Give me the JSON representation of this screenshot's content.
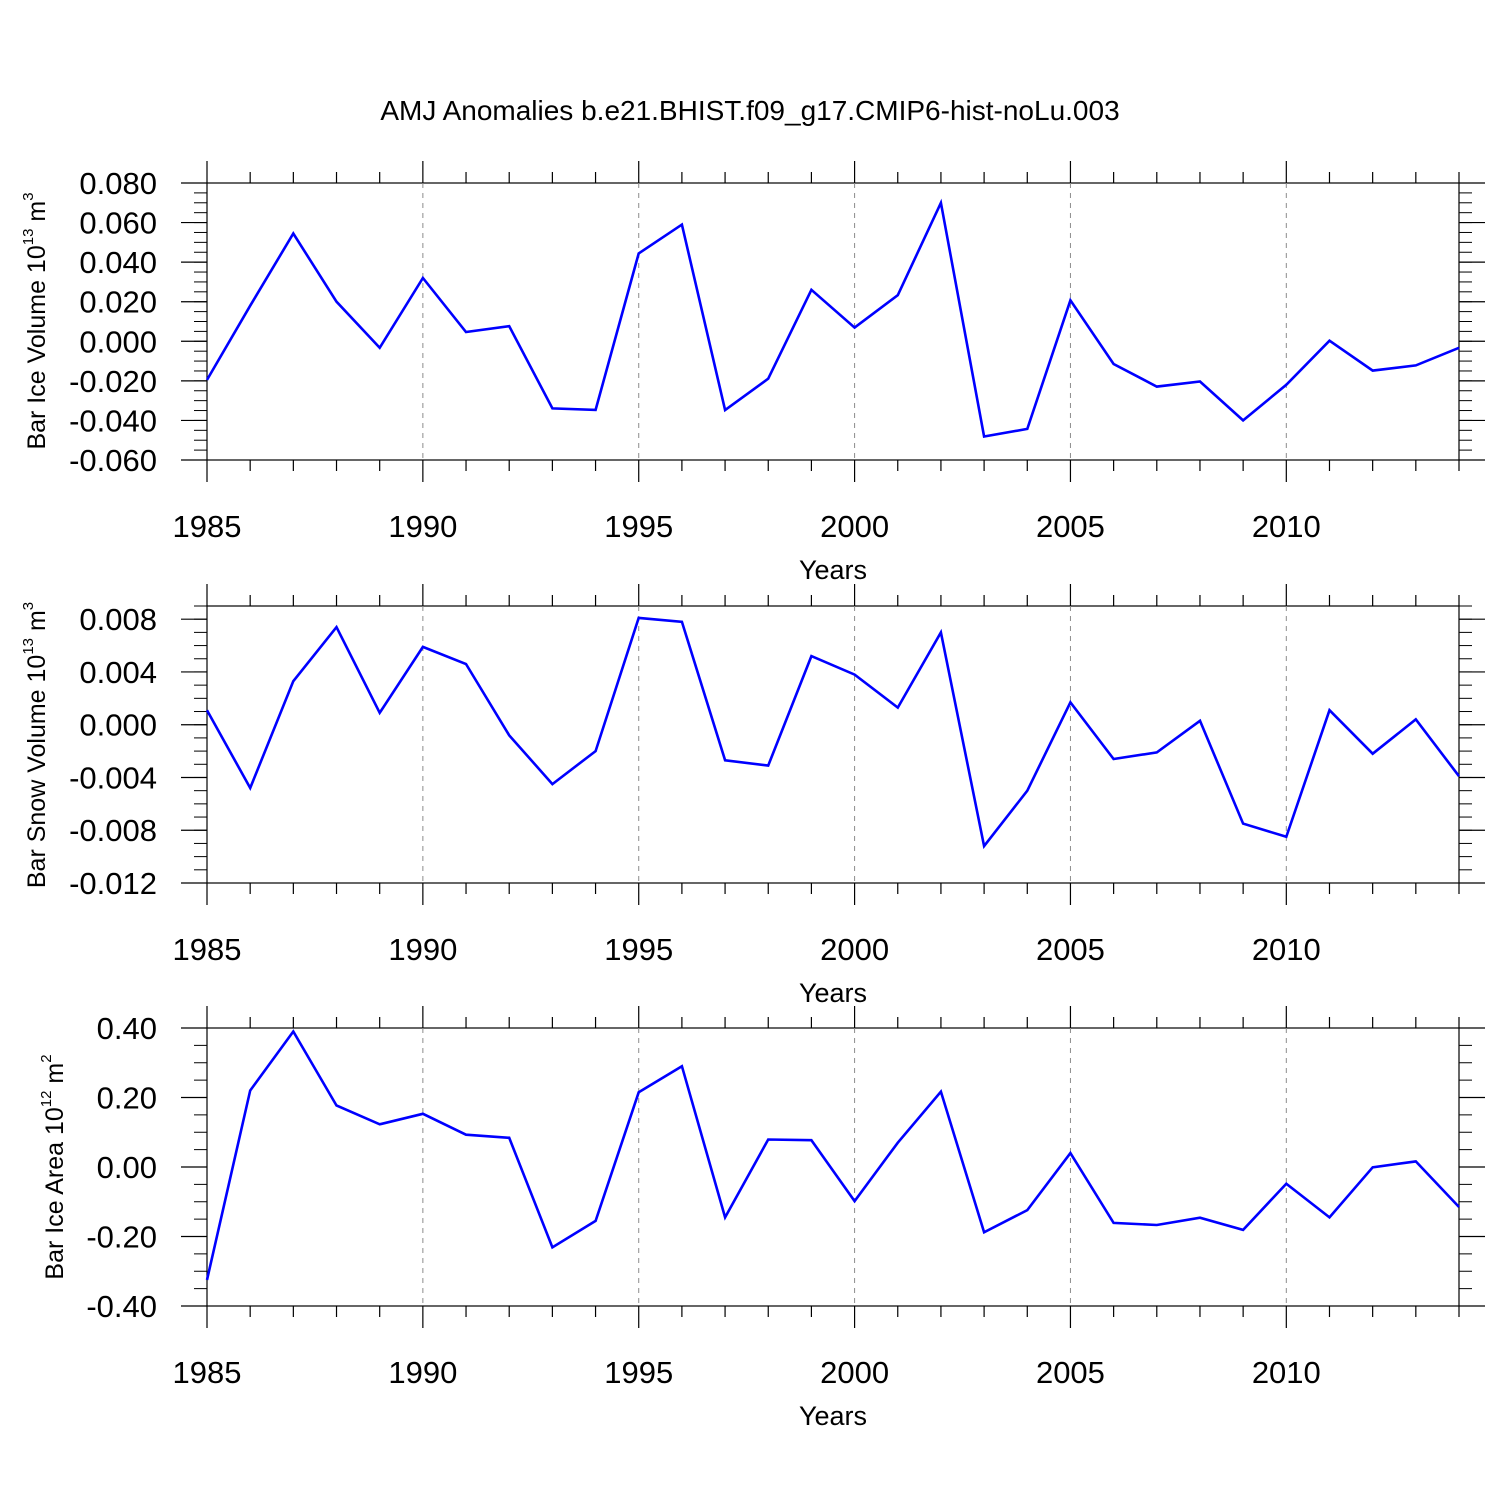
{
  "title": "AMJ Anomalies b.e21.BHIST.f09_g17.CMIP6-hist-noLu.003",
  "colors": {
    "line": "#0000ff",
    "axis": "#000000",
    "grid": "#8c8c8c"
  },
  "chart_data": [
    {
      "type": "line",
      "ylabel": {
        "text": "Bar Ice Volume 10",
        "sup": "13",
        "unit": " m",
        "unit_sup": "3"
      },
      "xlabel": "Years",
      "xlim": [
        1985,
        2014
      ],
      "ylim": [
        -0.06,
        0.08
      ],
      "x_ticks": [
        "1985",
        "1990",
        "1995",
        "2000",
        "2005",
        "2010"
      ],
      "y_ticks": [
        "0.080",
        "0.060",
        "0.040",
        "0.020",
        "0.000",
        "-0.020",
        "-0.040",
        "-0.060"
      ],
      "y_tick_values": [
        0.08,
        0.06,
        0.04,
        0.02,
        0.0,
        -0.02,
        -0.04,
        -0.06
      ],
      "y_minor_step": 0.005,
      "grid": "vertical dashed at major x ticks",
      "x": [
        1985,
        1986,
        1987,
        1988,
        1989,
        1990,
        1991,
        1992,
        1993,
        1994,
        1995,
        1996,
        1997,
        1998,
        1999,
        2000,
        2001,
        2002,
        2003,
        2004,
        2005,
        2006,
        2007,
        2008,
        2009,
        2010,
        2011,
        2012,
        2013,
        2014
      ],
      "values": [
        -0.0195,
        0.018,
        0.0545,
        0.02,
        -0.0033,
        0.032,
        0.0047,
        0.0077,
        -0.0339,
        -0.0347,
        0.0444,
        0.059,
        -0.0348,
        -0.0189,
        0.026,
        0.0069,
        0.0233,
        0.07,
        -0.0481,
        -0.0443,
        0.0207,
        -0.0115,
        -0.0229,
        -0.0203,
        -0.04,
        -0.022,
        0.0003,
        -0.0148,
        -0.0122,
        -0.0033
      ]
    },
    {
      "type": "line",
      "ylabel": {
        "text": "Bar Snow Volume 10",
        "sup": "13",
        "unit": " m",
        "unit_sup": "3"
      },
      "xlabel": "Years",
      "xlim": [
        1985,
        2014
      ],
      "ylim": [
        -0.012,
        0.009
      ],
      "x_ticks": [
        "1985",
        "1990",
        "1995",
        "2000",
        "2005",
        "2010"
      ],
      "y_ticks": [
        "0.008",
        "0.004",
        "0.000",
        "-0.004",
        "-0.008",
        "-0.012"
      ],
      "y_tick_values": [
        0.008,
        0.004,
        0.0,
        -0.004,
        -0.008,
        -0.012
      ],
      "y_minor_step": 0.001,
      "grid": "vertical dashed at major x ticks",
      "x": [
        1985,
        1986,
        1987,
        1988,
        1989,
        1990,
        1991,
        1992,
        1993,
        1994,
        1995,
        1996,
        1997,
        1998,
        1999,
        2000,
        2001,
        2002,
        2003,
        2004,
        2005,
        2006,
        2007,
        2008,
        2009,
        2010,
        2011,
        2012,
        2013,
        2014
      ],
      "values": [
        0.0011,
        -0.0048,
        0.0033,
        0.0074,
        0.0009,
        0.0059,
        0.0046,
        -0.0008,
        -0.0045,
        -0.002,
        0.0081,
        0.0078,
        -0.0027,
        -0.0031,
        0.0052,
        0.0038,
        0.0013,
        0.007,
        -0.0092,
        -0.005,
        0.0017,
        -0.0026,
        -0.0021,
        0.0003,
        -0.0075,
        -0.0085,
        0.0011,
        -0.0022,
        0.0004,
        -0.0039
      ]
    },
    {
      "type": "line",
      "ylabel": {
        "text": "Bar Ice Area 10",
        "sup": "12",
        "unit": " m",
        "unit_sup": "2"
      },
      "xlabel": "Years",
      "xlim": [
        1985,
        2014
      ],
      "ylim": [
        -0.4,
        0.4
      ],
      "x_ticks": [
        "1985",
        "1990",
        "1995",
        "2000",
        "2005",
        "2010"
      ],
      "y_ticks": [
        "0.40",
        "0.20",
        "0.00",
        "-0.20",
        "-0.40"
      ],
      "y_tick_values": [
        0.4,
        0.2,
        0.0,
        -0.2,
        -0.4
      ],
      "y_minor_step": 0.05,
      "grid": "vertical dashed at major x ticks",
      "x": [
        1985,
        1986,
        1987,
        1988,
        1989,
        1990,
        1991,
        1992,
        1993,
        1994,
        1995,
        1996,
        1997,
        1998,
        1999,
        2000,
        2001,
        2002,
        2003,
        2004,
        2005,
        2006,
        2007,
        2008,
        2009,
        2010,
        2011,
        2012,
        2013,
        2014
      ],
      "values": [
        -0.325,
        0.22,
        0.39,
        0.177,
        0.123,
        0.153,
        0.093,
        0.084,
        -0.231,
        -0.155,
        0.215,
        0.29,
        -0.145,
        0.079,
        0.077,
        -0.098,
        0.07,
        0.217,
        -0.188,
        -0.124,
        0.04,
        -0.161,
        -0.167,
        -0.146,
        -0.181,
        -0.048,
        -0.145,
        -0.001,
        0.016,
        -0.115
      ]
    }
  ]
}
